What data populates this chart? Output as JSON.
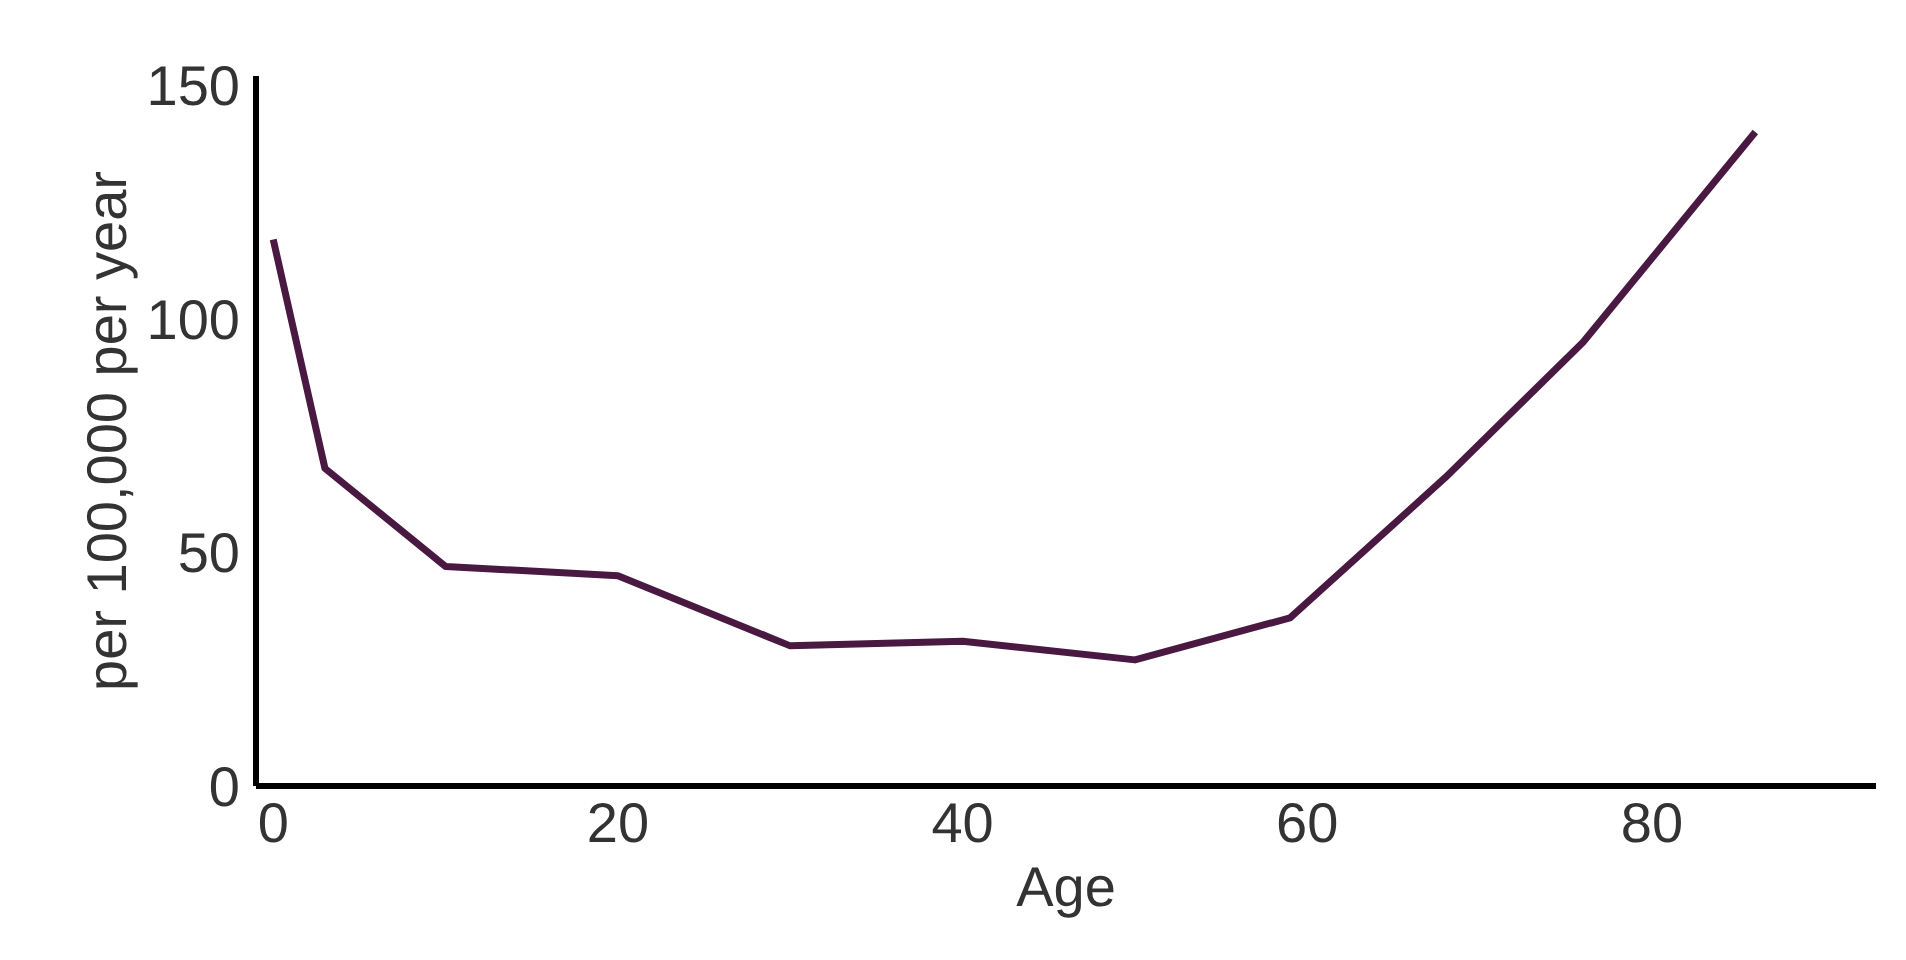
{
  "chart_data": {
    "type": "line",
    "xlabel": "Age",
    "ylabel": "per 100,000 per year",
    "x": [
      0,
      3,
      10,
      20,
      30,
      40,
      50,
      59,
      68,
      76,
      86
    ],
    "values": [
      117,
      68,
      47,
      45,
      30,
      31,
      27,
      36,
      66,
      95,
      140
    ],
    "color": "#4a1942",
    "xlim": [
      -1,
      93
    ],
    "xticks": [
      0,
      20,
      40,
      60,
      80
    ],
    "ylim": [
      0,
      152
    ],
    "yticks": [
      0,
      50,
      100,
      150
    ],
    "grid": false,
    "legend": false,
    "marker": "none",
    "line_style": "solid"
  }
}
